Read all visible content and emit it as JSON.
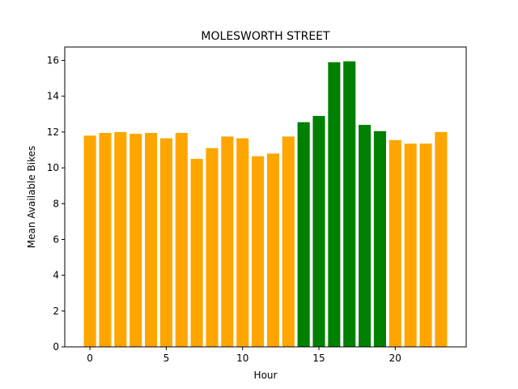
{
  "chart_data": {
    "type": "bar",
    "title": "MOLESWORTH STREET",
    "xlabel": "Hour",
    "ylabel": "Mean Available Bikes",
    "x": [
      0,
      1,
      2,
      3,
      4,
      5,
      6,
      7,
      8,
      9,
      10,
      11,
      12,
      13,
      14,
      15,
      16,
      17,
      18,
      19,
      20,
      21,
      22,
      23
    ],
    "values": [
      11.8,
      11.95,
      12.0,
      11.9,
      11.95,
      11.65,
      11.95,
      10.5,
      11.1,
      11.75,
      11.65,
      10.65,
      10.8,
      11.75,
      12.55,
      12.9,
      15.9,
      15.95,
      12.4,
      12.05,
      11.55,
      11.35,
      11.35,
      12.0
    ],
    "colors": [
      "#FFA500",
      "#FFA500",
      "#FFA500",
      "#FFA500",
      "#FFA500",
      "#FFA500",
      "#FFA500",
      "#FFA500",
      "#FFA500",
      "#FFA500",
      "#FFA500",
      "#FFA500",
      "#FFA500",
      "#FFA500",
      "#008000",
      "#008000",
      "#008000",
      "#008000",
      "#008000",
      "#008000",
      "#FFA500",
      "#FFA500",
      "#FFA500",
      "#FFA500"
    ],
    "xlim": [
      -1.65,
      24.65
    ],
    "ylim": [
      0,
      16.75
    ],
    "xticks": [
      0,
      5,
      10,
      15,
      20
    ],
    "yticks": [
      0,
      2,
      4,
      6,
      8,
      10,
      12,
      14,
      16
    ],
    "grid": false,
    "legend": "none"
  }
}
